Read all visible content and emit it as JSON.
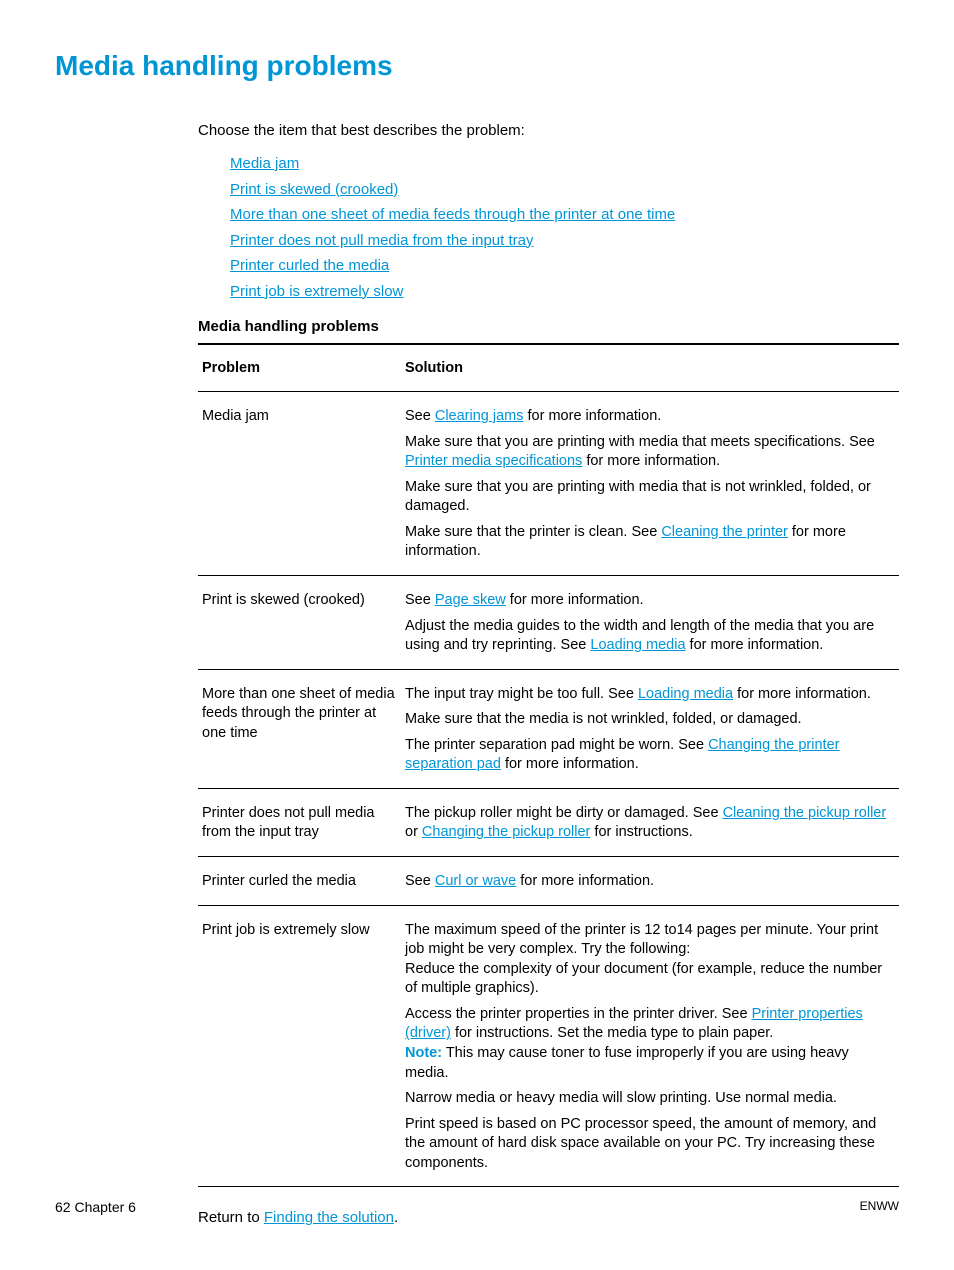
{
  "title": "Media handling problems",
  "intro": "Choose the item that best describes the problem:",
  "links": [
    "Media jam",
    "Print is skewed (crooked)",
    "More than one sheet of media feeds through the printer at one time",
    "Printer does not pull media from the input tray",
    "Printer curled the media",
    "Print job is extremely slow"
  ],
  "subheading": "Media handling problems",
  "table": {
    "col_problem": "Problem",
    "col_solution": "Solution",
    "rows": [
      {
        "problem": "Media jam",
        "solutions": [
          {
            "pre": "See ",
            "link": "Clearing jams",
            "post": " for more information."
          },
          {
            "pre": "Make sure that you are printing with media that meets specifications. See ",
            "link": "Printer media specifications",
            "post": " for more information."
          },
          {
            "pre": "Make sure that you are printing with media that is not wrinkled, folded, or damaged."
          },
          {
            "pre": "Make sure that the printer is clean. See ",
            "link": "Cleaning the printer",
            "post": " for more information."
          }
        ]
      },
      {
        "problem": "Print is skewed (crooked)",
        "solutions": [
          {
            "pre": "See ",
            "link": "Page skew",
            "post": " for more information."
          },
          {
            "pre": "Adjust the media guides to the width and length of the media that you are using and try reprinting. See ",
            "link": "Loading media",
            "post": " for more information."
          }
        ]
      },
      {
        "problem": "More than one sheet of media feeds through the printer at one time",
        "solutions": [
          {
            "pre": "The input tray might be too full. See ",
            "link": "Loading media",
            "post": " for more information."
          },
          {
            "pre": "Make sure that the media is not wrinkled, folded, or damaged."
          },
          {
            "pre": "The printer separation pad might be worn. See ",
            "link": "Changing the printer separation pad",
            "post": " for more information."
          }
        ]
      },
      {
        "problem": "Printer does not pull media from the input tray",
        "solutions": [
          {
            "pre": "The pickup roller might be dirty or damaged. See ",
            "link": "Cleaning the pickup roller",
            "post": " or ",
            "link2": "Changing the pickup roller",
            "post2": " for instructions."
          }
        ]
      },
      {
        "problem": "Printer curled the media",
        "solutions": [
          {
            "pre": "See ",
            "link": "Curl or wave",
            "post": " for more information."
          }
        ]
      },
      {
        "problem": "Print job is extremely slow",
        "solutions": [
          {
            "pre": "The maximum speed of the printer is 12 to14 pages per minute. Your print job might be very complex. Try the following:\nReduce the complexity of your document (for example, reduce the number of multiple graphics)."
          },
          {
            "pre": "Access the printer properties in the printer driver. See ",
            "link": "Printer properties (driver)",
            "post": " for instructions. Set the media type to plain paper.\n",
            "note_label": "Note:",
            "note_text": " This may cause toner to fuse improperly if you are using heavy media."
          },
          {
            "pre": "Narrow media or heavy media will slow printing. Use normal media."
          },
          {
            "pre": "Print speed is based on PC processor speed, the amount of memory, and the amount of hard disk space available on your PC. Try increasing these components."
          }
        ]
      }
    ]
  },
  "return_pre": "Return to ",
  "return_link": "Finding the solution",
  "return_post": ".",
  "footer_left_page": "62",
  "footer_left_chapter": "  Chapter 6",
  "footer_right": "ENWW",
  "colors": {
    "accent": "#0096d6",
    "text": "#000000",
    "background": "#ffffff"
  }
}
